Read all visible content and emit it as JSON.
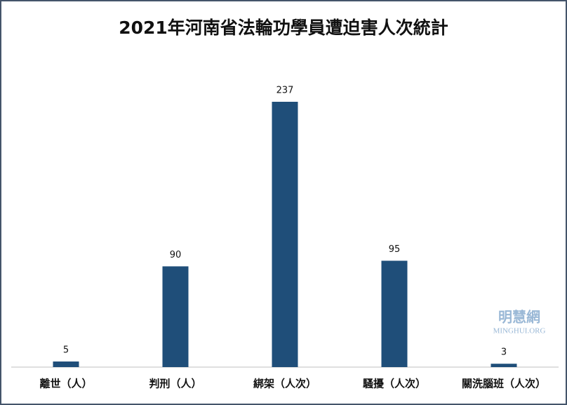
{
  "chart_data": {
    "type": "bar",
    "title": "2021年河南省法輪功學員遭迫害人次統計",
    "categories": [
      "離世（人）",
      "判刑（人）",
      "綁架（人次）",
      "騷擾（人次）",
      "關洗腦班（人次）"
    ],
    "values": [
      5,
      90,
      237,
      95,
      3
    ],
    "color": "#1f4e79",
    "watermark": "明慧網",
    "watermark_sub": "MINGHUI.ORG"
  }
}
